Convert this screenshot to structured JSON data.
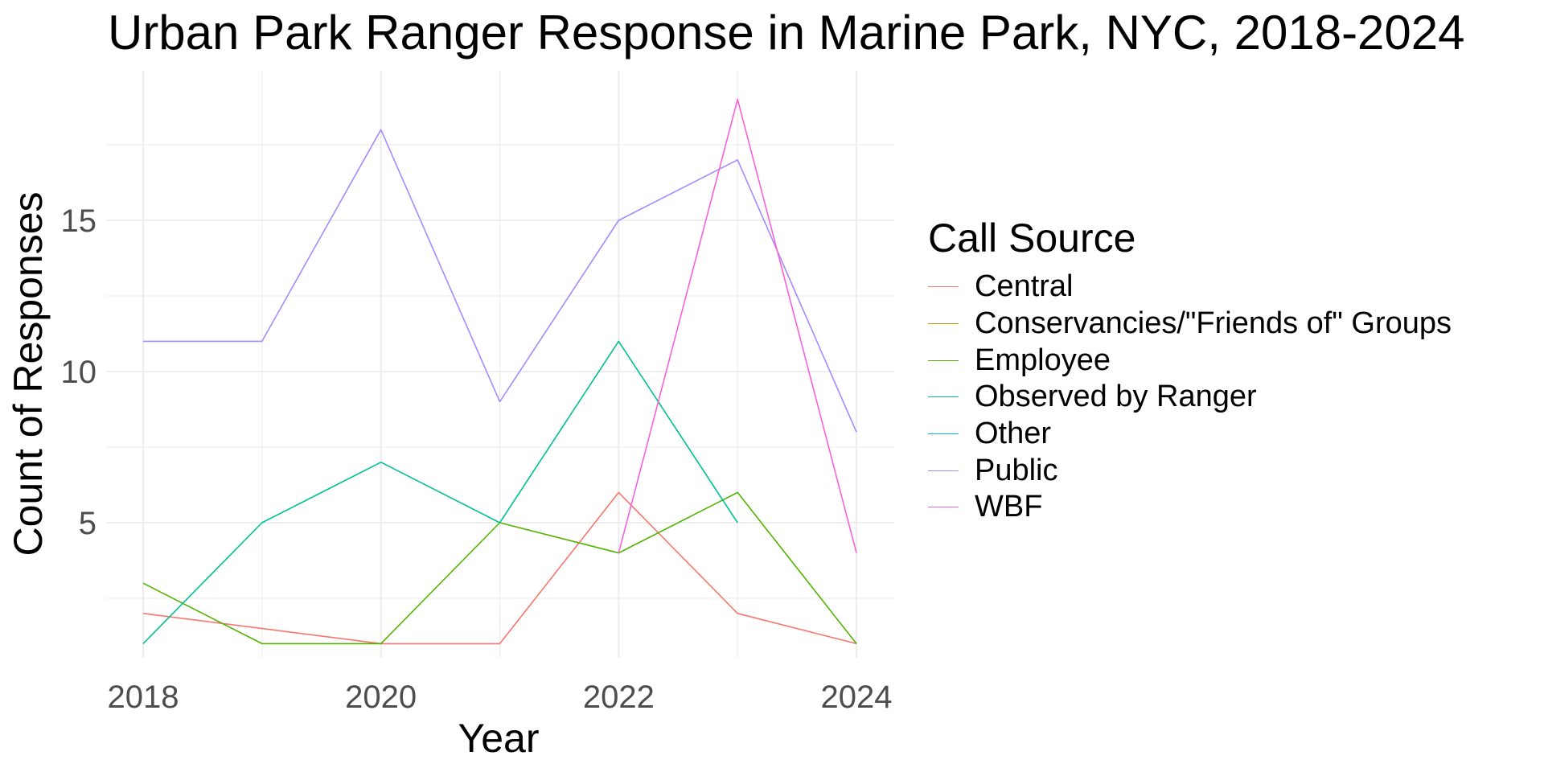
{
  "chart_data": {
    "type": "line",
    "title": "Urban Park Ranger Response in Marine Park, NYC, 2018-2024",
    "xlabel": "Year",
    "ylabel": "Count of Responses",
    "x": [
      2018,
      2019,
      2020,
      2021,
      2022,
      2023,
      2024
    ],
    "x_ticks": [
      2018,
      2020,
      2022,
      2024
    ],
    "y_ticks": [
      5,
      10,
      15
    ],
    "xlim": [
      2017.7,
      2024.3
    ],
    "ylim": [
      0.1,
      19.9
    ],
    "grid": true,
    "legend": {
      "title": "Call Source",
      "placement": "right"
    },
    "series": [
      {
        "name": "Central",
        "color": "#F8766D",
        "values": [
          2,
          1.5,
          1,
          1,
          6,
          2,
          1
        ]
      },
      {
        "name": "Conservancies/\"Friends of\" Groups",
        "color": "#C49A00",
        "values": [
          null,
          null,
          null,
          null,
          null,
          null,
          null
        ]
      },
      {
        "name": "Employee",
        "color": "#53B400",
        "values": [
          3,
          1,
          1,
          5,
          4,
          6,
          1
        ]
      },
      {
        "name": "Observed by Ranger",
        "color": "#00C094",
        "values": [
          1,
          5,
          7,
          5,
          11,
          5,
          null
        ]
      },
      {
        "name": "Other",
        "color": "#00B6EB",
        "values": [
          null,
          null,
          null,
          null,
          null,
          null,
          null
        ]
      },
      {
        "name": "Public",
        "color": "#A58AFF",
        "values": [
          11,
          11,
          18,
          9,
          15,
          17,
          8
        ]
      },
      {
        "name": "WBF",
        "color": "#FB61D7",
        "values": [
          null,
          null,
          null,
          null,
          4,
          19,
          4
        ]
      }
    ]
  }
}
